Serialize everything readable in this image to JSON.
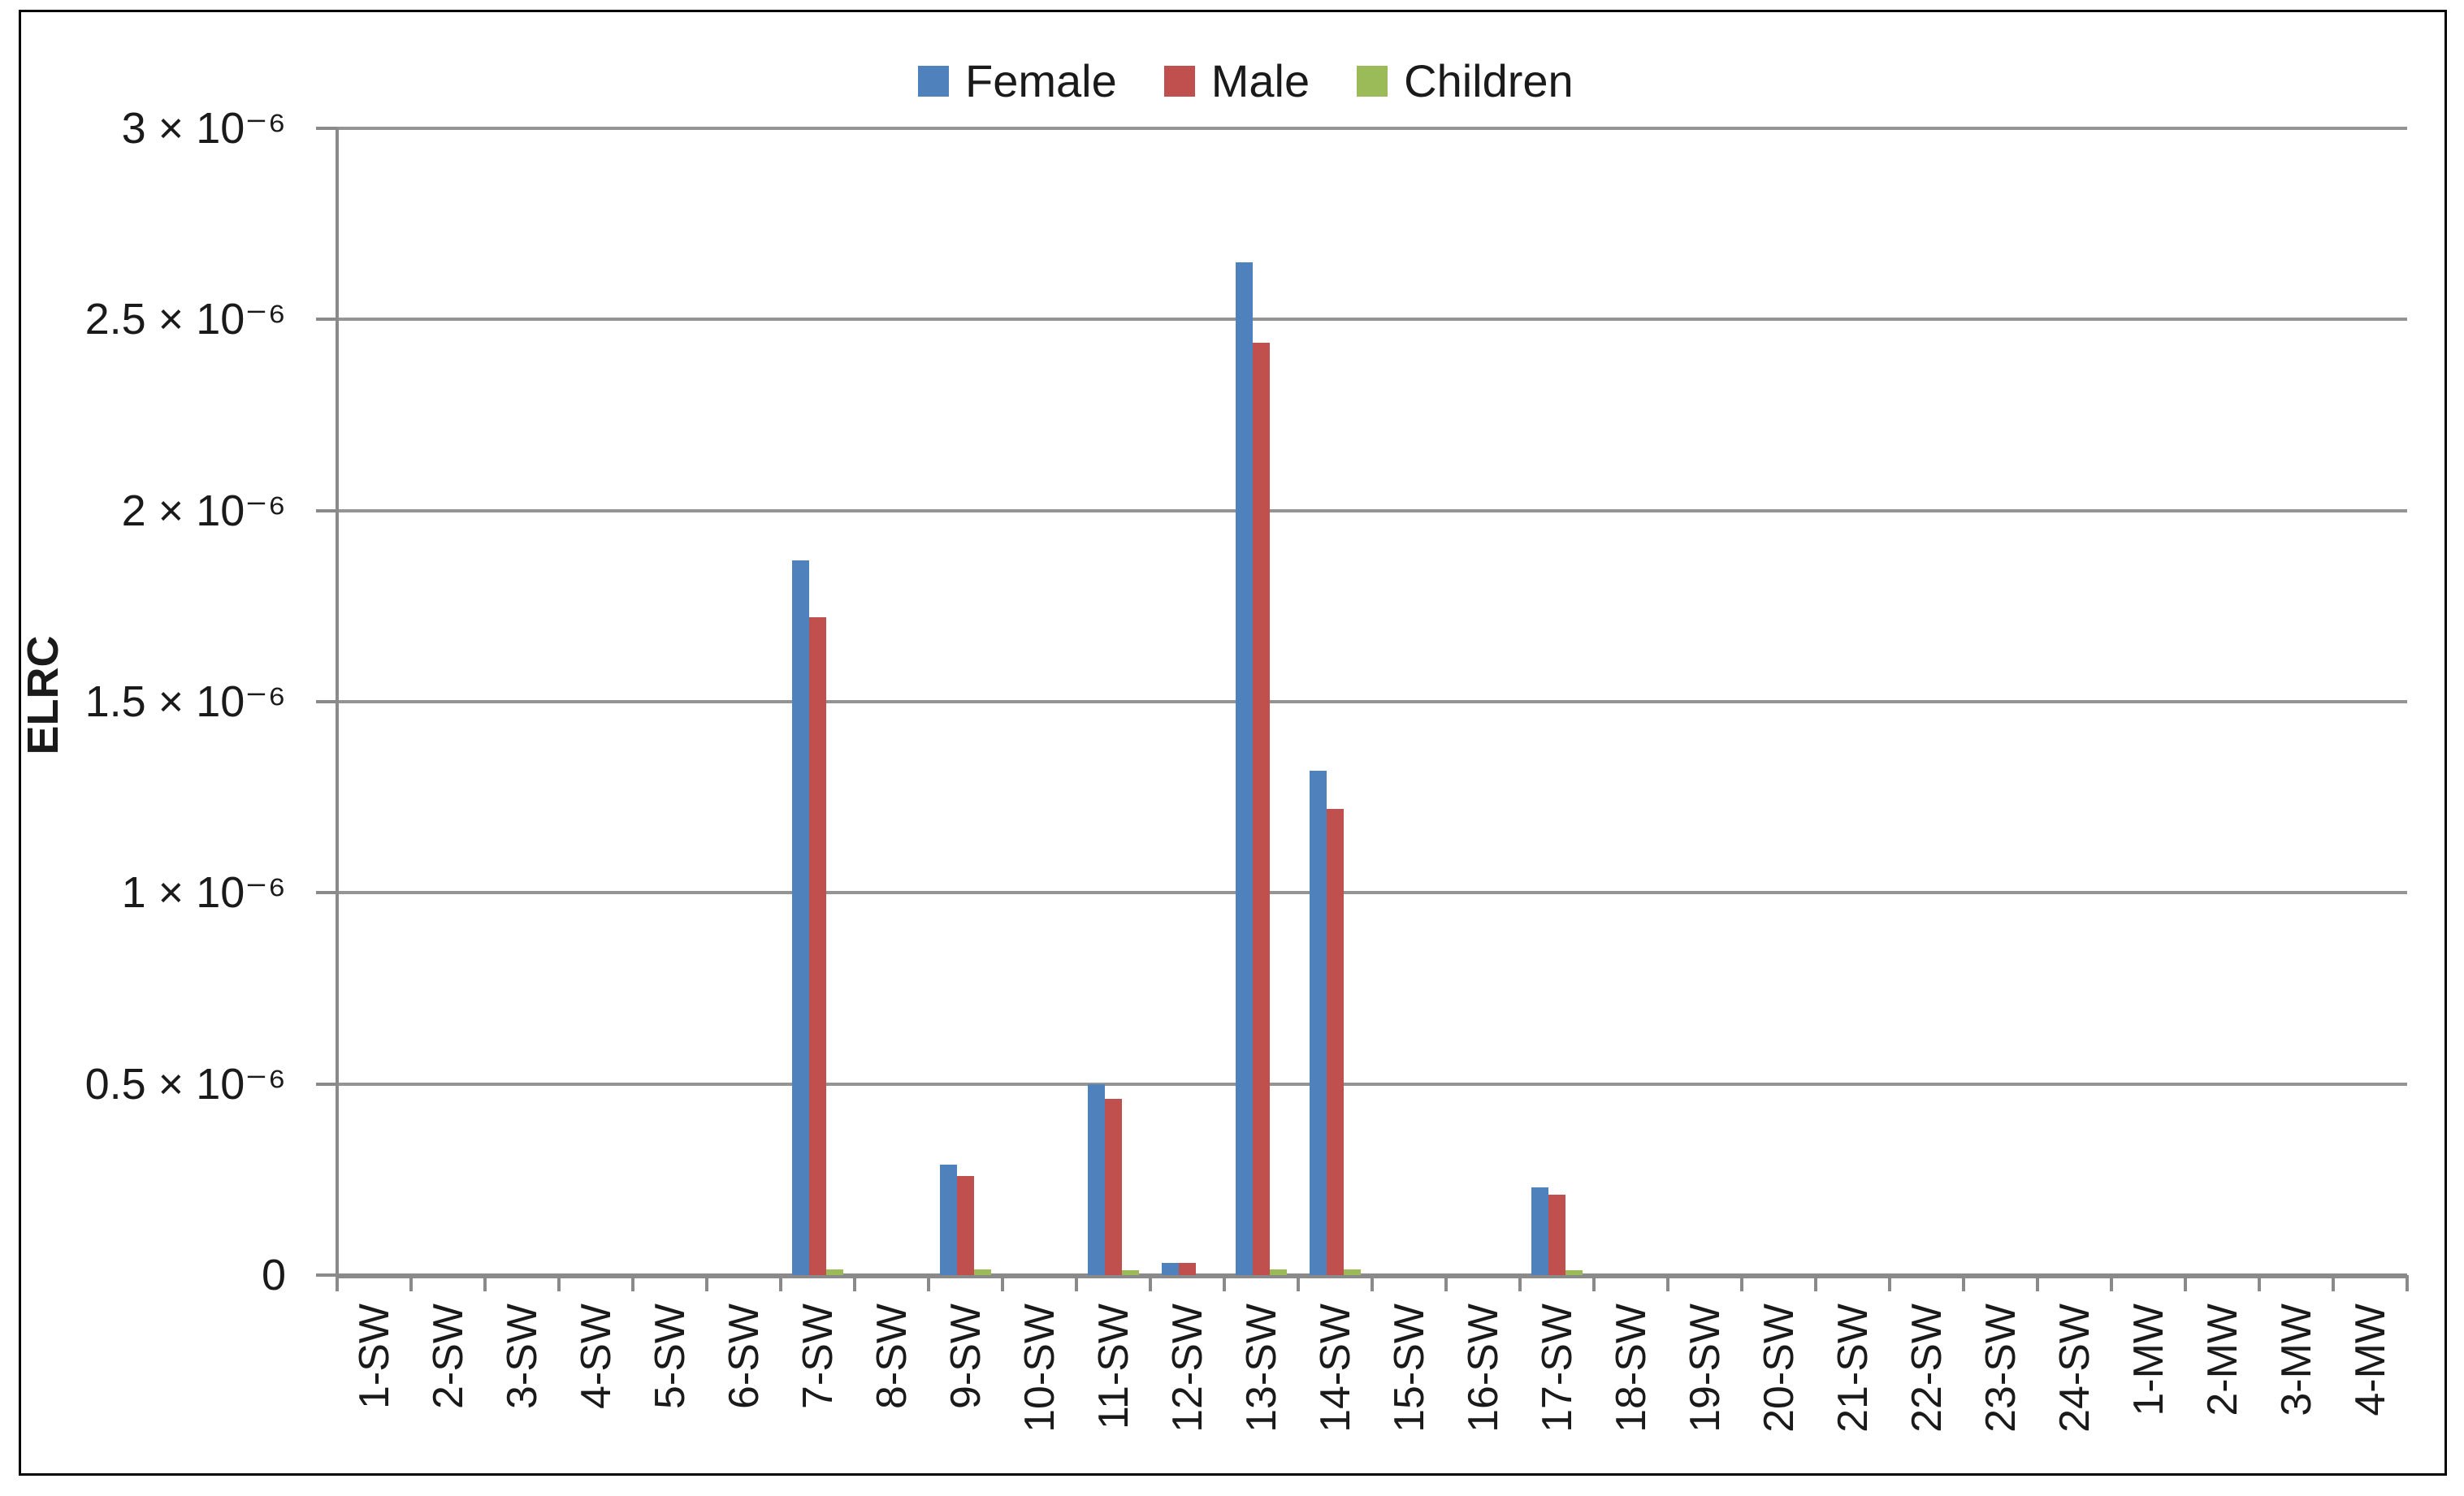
{
  "chart_data": {
    "type": "bar",
    "title": "",
    "xlabel": "",
    "ylabel": "ELRC",
    "ylim": [
      0,
      3e-06
    ],
    "grid": true,
    "legend_position": "top-center",
    "categories": [
      "1-SW",
      "2-SW",
      "3-SW",
      "4-SW",
      "5-SW",
      "6-SW",
      "7-SW",
      "8-SW",
      "9-SW",
      "10-SW",
      "11-SW",
      "12-SW",
      "13-SW",
      "14-SW",
      "15-SW",
      "16-SW",
      "17-SW",
      "18-SW",
      "19-SW",
      "20-SW",
      "21-SW",
      "22-SW",
      "23-SW",
      "24-SW",
      "1-MW",
      "2-MW",
      "3-MW",
      "4-MW"
    ],
    "y_ticks": [
      {
        "value": 0,
        "label": "0"
      },
      {
        "value": 5e-07,
        "label": "0.5 × 10⁻⁶"
      },
      {
        "value": 1e-06,
        "label": "1 × 10⁻⁶"
      },
      {
        "value": 1.5e-06,
        "label": "1.5 × 10⁻⁶"
      },
      {
        "value": 2e-06,
        "label": "2 × 10⁻⁶"
      },
      {
        "value": 2.5e-06,
        "label": "2.5 × 10⁻⁶"
      },
      {
        "value": 3e-06,
        "label": "3 × 10⁻⁶"
      }
    ],
    "series": [
      {
        "name": "Female",
        "color": "#4F81BD",
        "values": [
          0,
          0,
          0,
          0,
          0,
          0,
          1.87e-06,
          0,
          2.9e-07,
          0,
          5e-07,
          3.2e-08,
          2.65e-06,
          1.32e-06,
          0,
          0,
          2.3e-07,
          0,
          0,
          0,
          0,
          0,
          0,
          0,
          0,
          0,
          0,
          0
        ]
      },
      {
        "name": "Male",
        "color": "#C0504D",
        "values": [
          0,
          0,
          0,
          0,
          0,
          0,
          1.72e-06,
          0,
          2.6e-07,
          0,
          4.6e-07,
          3.2e-08,
          2.44e-06,
          1.22e-06,
          0,
          0,
          2.1e-07,
          0,
          0,
          0,
          0,
          0,
          0,
          0,
          0,
          0,
          0,
          0
        ]
      },
      {
        "name": "Children",
        "color": "#9BBB59",
        "values": [
          0,
          0,
          0,
          0,
          0,
          0,
          1.5e-08,
          0,
          1.5e-08,
          0,
          1.2e-08,
          0,
          1.5e-08,
          1.5e-08,
          0,
          0,
          1.3e-08,
          0,
          0,
          0,
          0,
          0,
          0,
          0,
          0,
          0,
          0,
          0
        ]
      }
    ]
  },
  "colors": {
    "gridline": "#949494",
    "axis": "#8A8A8A",
    "border": "#000000",
    "background": "#FFFFFF",
    "text": "#1A1A1A"
  }
}
